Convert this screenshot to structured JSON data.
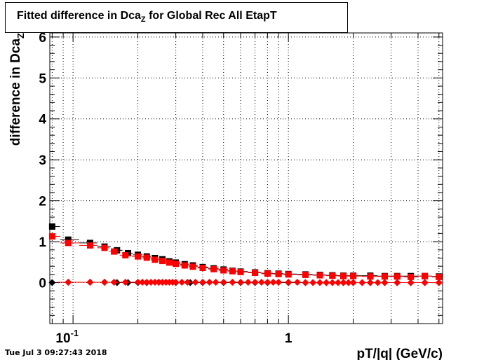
{
  "title": {
    "prefix": "Fitted difference in Dca",
    "subscript": "Z",
    "suffix": " for Global Rec All EtapT"
  },
  "timestamp": "Tue Jul  3 09:27:43 2018",
  "colors": {
    "series_black": "#000000",
    "series_red": "#ff0000",
    "grid": "#000000",
    "frame": "#000000"
  },
  "chart_data": {
    "type": "scatter",
    "xlabel": "pT/|q| (GeV/c)",
    "ylabel": "difference in Dca",
    "ylabel_subscript": "Z",
    "x_scale": "log",
    "xlim": [
      0.078,
      5.2
    ],
    "ylim": [
      -1.0,
      6.1
    ],
    "grid": true,
    "x_major_ticks": [
      {
        "value": 0.1,
        "label": "10",
        "exp": "-1"
      },
      {
        "value": 1.0,
        "label": "1",
        "exp": ""
      }
    ],
    "y_major_ticks": [
      0,
      1,
      2,
      3,
      4,
      5,
      6
    ],
    "y_tick_labels": [
      "0",
      "1",
      "2",
      "3",
      "4",
      "5",
      "6"
    ],
    "series": [
      {
        "marker": "square",
        "color": "#000000",
        "x": [
          0.08,
          0.095,
          0.12,
          0.14,
          0.16,
          0.18,
          0.2,
          0.22,
          0.24,
          0.26,
          0.28,
          0.3,
          0.33,
          0.36,
          0.4,
          0.45,
          0.5,
          0.55,
          0.6,
          0.7,
          0.8,
          0.9,
          1.0,
          1.2,
          1.4,
          1.6,
          1.8,
          2.0,
          2.4,
          2.8,
          3.2,
          3.7,
          4.3,
          5.0
        ],
        "y": [
          1.37,
          1.05,
          0.97,
          0.88,
          0.79,
          0.72,
          0.68,
          0.64,
          0.6,
          0.57,
          0.52,
          0.49,
          0.45,
          0.42,
          0.38,
          0.35,
          0.32,
          0.29,
          0.27,
          0.25,
          0.23,
          0.22,
          0.21,
          0.2,
          0.19,
          0.18,
          0.17,
          0.17,
          0.17,
          0.16,
          0.16,
          0.16,
          0.16,
          0.15
        ]
      },
      {
        "marker": "square",
        "color": "#ff0000",
        "x": [
          0.08,
          0.095,
          0.12,
          0.14,
          0.155,
          0.175,
          0.2,
          0.22,
          0.24,
          0.26,
          0.28,
          0.3,
          0.33,
          0.36,
          0.4,
          0.45,
          0.5,
          0.55,
          0.6,
          0.7,
          0.8,
          0.9,
          1.0,
          1.2,
          1.4,
          1.6,
          1.8,
          2.0,
          2.4,
          2.8,
          3.2,
          3.7,
          4.3,
          5.0
        ],
        "y": [
          1.13,
          0.97,
          0.91,
          0.85,
          0.76,
          0.67,
          0.64,
          0.61,
          0.56,
          0.53,
          0.49,
          0.46,
          0.42,
          0.39,
          0.36,
          0.33,
          0.3,
          0.28,
          0.26,
          0.24,
          0.22,
          0.21,
          0.2,
          0.19,
          0.18,
          0.17,
          0.16,
          0.16,
          0.15,
          0.15,
          0.15,
          0.14,
          0.16,
          0.14
        ]
      },
      {
        "marker": "diamond",
        "color": "#000000",
        "x": [
          0.08,
          0.095,
          0.12,
          0.14,
          0.16,
          0.18,
          0.2,
          0.22,
          0.25,
          0.3,
          0.35,
          0.4,
          0.5,
          0.6,
          0.7,
          0.8,
          1.0,
          1.2,
          1.5,
          1.8,
          2.0,
          2.4,
          2.8,
          3.2,
          3.7,
          4.3,
          5.0
        ],
        "y": [
          0.0,
          0.01,
          0.01,
          0.01,
          0.0,
          0.0,
          0.0,
          0.0,
          0.01,
          0.0,
          0.0,
          0.0,
          0.0,
          0.0,
          0.0,
          0.0,
          0.0,
          0.0,
          0.0,
          0.0,
          0.0,
          0.0,
          0.0,
          0.0,
          0.0,
          0.0,
          0.0
        ]
      },
      {
        "marker": "diamond",
        "color": "#ff0000",
        "x": [
          0.095,
          0.12,
          0.14,
          0.155,
          0.175,
          0.2,
          0.21,
          0.22,
          0.23,
          0.24,
          0.25,
          0.26,
          0.27,
          0.28,
          0.29,
          0.3,
          0.32,
          0.34,
          0.37,
          0.4,
          0.43,
          0.46,
          0.5,
          0.55,
          0.6,
          0.65,
          0.7,
          0.75,
          0.8,
          0.85,
          0.9,
          1.0,
          1.1,
          1.2,
          1.3,
          1.4,
          1.5,
          1.6,
          1.7,
          1.8,
          1.9,
          2.0,
          2.2,
          2.4,
          2.6,
          2.8,
          3.2,
          3.7,
          4.3,
          5.0
        ],
        "y": [
          0.01,
          0.01,
          0.01,
          0.01,
          0.01,
          0.01,
          0.01,
          0.01,
          0.01,
          0.01,
          0.01,
          0.01,
          0.01,
          0.01,
          0.01,
          0.01,
          0.01,
          0.01,
          0.01,
          0.01,
          0.01,
          0.01,
          0.01,
          0.01,
          0.01,
          0.01,
          0.01,
          0.01,
          0.01,
          0.01,
          0.01,
          0.01,
          0.01,
          0.0,
          0.0,
          0.0,
          0.0,
          0.0,
          0.0,
          0.0,
          0.0,
          0.0,
          0.0,
          0.0,
          0.0,
          0.0,
          0.0,
          0.0,
          0.0,
          0.0
        ]
      }
    ]
  }
}
